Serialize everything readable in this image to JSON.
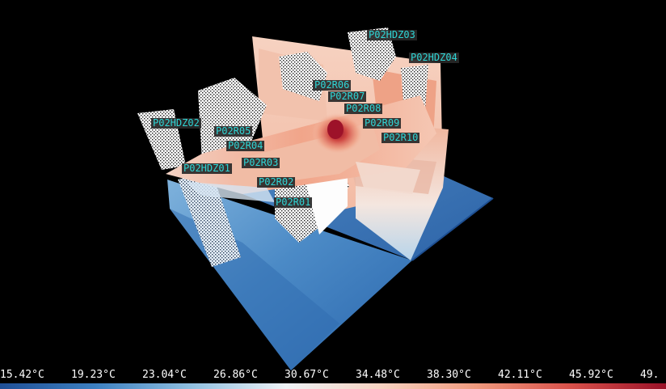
{
  "viewer": {
    "probe_labels": [
      "P02HDZ03",
      "P02HDZ04",
      "P02R06",
      "P02R07",
      "P02R08",
      "P02HDZ02",
      "P02R09",
      "P02R05",
      "P02R10",
      "P02R04",
      "P02HDZ01",
      "P02R03",
      "P02R02",
      "P02R01"
    ]
  },
  "color_scale": {
    "ticks": [
      "15.42°C",
      "19.23°C",
      "23.04°C",
      "26.86°C",
      "30.67°C",
      "34.48°C",
      "38.30°C",
      "42.11°C",
      "45.92°C",
      "49."
    ],
    "colors": [
      "#1f4f96",
      "#3c7fc0",
      "#8fbfe0",
      "#eef2f6",
      "#f7d3c2",
      "#f09a7e",
      "#d8504a",
      "#9a1128"
    ]
  }
}
